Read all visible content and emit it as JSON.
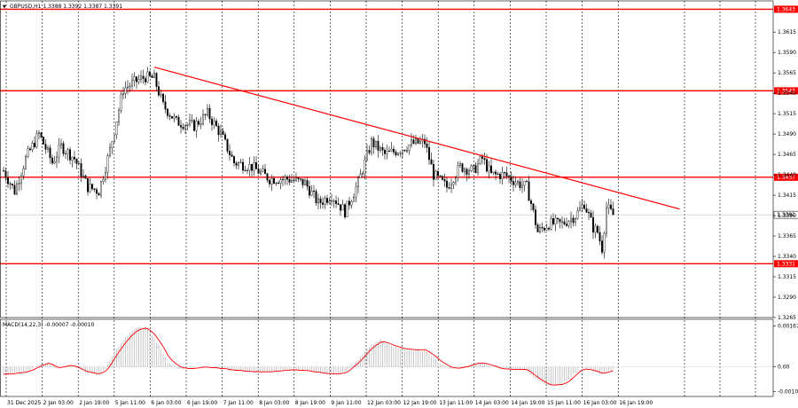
{
  "header": {
    "symbol_line": "GBPUSD,H1  1.3388 1.3392 1.3387 1.3391",
    "macd_line": "MACD(14,22,3) -0.00007 -0.00010"
  },
  "colors": {
    "background": "#ffffff",
    "candles": "#000000",
    "levels": "#ff0000",
    "trendline": "#ff0000",
    "macd_signal": "#ff0000",
    "macd_histogram": "#b0b0b0",
    "level_label_bg": "#ff0000",
    "level_label_text": "#ffffff",
    "price_label_bg": "#ffffff"
  },
  "chart_data": [
    {
      "type": "candlestick",
      "symbol": "GBPUSD",
      "timeframe": "H1",
      "last_ohlc": {
        "open": 1.3388,
        "high": 1.3392,
        "low": 1.3387,
        "close": 1.3391
      },
      "ylim": [
        1.3265,
        1.365
      ],
      "y_ticks": [
        "1.3615",
        "1.3590",
        "1.3565",
        "1.3540",
        "1.3515",
        "1.3490",
        "1.3465",
        "1.3440",
        "1.3415",
        "1.3390",
        "1.3365",
        "1.3340",
        "1.3315",
        "1.3290",
        "1.3265"
      ],
      "x_ticks": [
        "31 Dec 2025",
        "2 Jan 03:00",
        "2 Jan 19:00",
        "5 Jan 11:00",
        "6 Jan 03:00",
        "6 Jan 19:00",
        "7 Jan 11:00",
        "8 Jan 03:00",
        "8 Jan 19:00",
        "9 Jan 11:00",
        "12 Jan 03:00",
        "12 Jan 19:00",
        "13 Jan 11:00",
        "14 Jan 03:00",
        "14 Jan 19:00",
        "15 Jan 11:00",
        "16 Jan 03:00",
        "16 Jan 19:00"
      ],
      "x_tick_positions": [
        0,
        16,
        32,
        48,
        64,
        80,
        96,
        112,
        128,
        144,
        160,
        176,
        192,
        208,
        224,
        240,
        256,
        272
      ],
      "horizontal_levels": [
        {
          "value": 1.3643,
          "label": "1.3643"
        },
        {
          "value": 1.3543,
          "label": "1.3543"
        },
        {
          "value": 1.3437,
          "label": "1.3437"
        },
        {
          "value": 1.3331,
          "label": "1.3331"
        }
      ],
      "current_price": {
        "value": 1.3391,
        "label": "1.3391"
      },
      "trendline": {
        "start": {
          "bar": 68,
          "price": 1.3572
        },
        "end": {
          "bar": 305,
          "price": 1.3398
        }
      },
      "bar_count": 275,
      "close_anchors": [
        [
          0,
          1.3445
        ],
        [
          5,
          1.342
        ],
        [
          10,
          1.346
        ],
        [
          16,
          1.349
        ],
        [
          22,
          1.3455
        ],
        [
          26,
          1.3475
        ],
        [
          32,
          1.346
        ],
        [
          38,
          1.3425
        ],
        [
          43,
          1.342
        ],
        [
          48,
          1.347
        ],
        [
          54,
          1.3545
        ],
        [
          60,
          1.3555
        ],
        [
          64,
          1.356
        ],
        [
          68,
          1.3558
        ],
        [
          72,
          1.3525
        ],
        [
          78,
          1.3505
        ],
        [
          86,
          1.35
        ],
        [
          92,
          1.3515
        ],
        [
          98,
          1.349
        ],
        [
          104,
          1.3455
        ],
        [
          112,
          1.345
        ],
        [
          120,
          1.3435
        ],
        [
          128,
          1.3435
        ],
        [
          136,
          1.343
        ],
        [
          142,
          1.3405
        ],
        [
          148,
          1.3415
        ],
        [
          154,
          1.3395
        ],
        [
          160,
          1.343
        ],
        [
          166,
          1.348
        ],
        [
          172,
          1.3465
        ],
        [
          178,
          1.347
        ],
        [
          184,
          1.3478
        ],
        [
          190,
          1.348
        ],
        [
          194,
          1.344
        ],
        [
          200,
          1.3425
        ],
        [
          206,
          1.345
        ],
        [
          212,
          1.3445
        ],
        [
          216,
          1.346
        ],
        [
          220,
          1.344
        ],
        [
          226,
          1.344
        ],
        [
          232,
          1.343
        ],
        [
          236,
          1.3425
        ],
        [
          238,
          1.3405
        ],
        [
          241,
          1.337
        ],
        [
          246,
          1.338
        ],
        [
          252,
          1.338
        ],
        [
          258,
          1.339
        ],
        [
          262,
          1.3405
        ],
        [
          266,
          1.3375
        ],
        [
          268,
          1.337
        ],
        [
          270,
          1.335
        ],
        [
          272,
          1.34
        ],
        [
          275,
          1.3391
        ]
      ]
    },
    {
      "type": "bar",
      "indicator": "MACD",
      "params": [
        14,
        22,
        3
      ],
      "values_shown": {
        "macd": -7e-05,
        "signal": -0.0001
      },
      "ylim": [
        -0.0012,
        0.0019
      ],
      "y_ticks": [
        "0.00167",
        "0.00",
        "-0.00101"
      ],
      "histogram_anchors": [
        [
          0,
          -0.0003
        ],
        [
          10,
          -0.0002
        ],
        [
          16,
          0.0001
        ],
        [
          20,
          0.0002
        ],
        [
          24,
          -0.0001
        ],
        [
          30,
          0.0001
        ],
        [
          36,
          -0.0002
        ],
        [
          42,
          -0.0003
        ],
        [
          46,
          -0.0001
        ],
        [
          50,
          0.0006
        ],
        [
          56,
          0.0013
        ],
        [
          60,
          0.0016
        ],
        [
          64,
          0.0016
        ],
        [
          68,
          0.0012
        ],
        [
          74,
          0.0002
        ],
        [
          80,
          -0.0001
        ],
        [
          90,
          0.0
        ],
        [
          100,
          -0.0001
        ],
        [
          110,
          -0.0002
        ],
        [
          120,
          -0.0002
        ],
        [
          130,
          -0.0001
        ],
        [
          140,
          -0.0002
        ],
        [
          148,
          -0.0003
        ],
        [
          154,
          -0.0002
        ],
        [
          160,
          0.0003
        ],
        [
          166,
          0.0009
        ],
        [
          170,
          0.0011
        ],
        [
          176,
          0.0008
        ],
        [
          184,
          0.0007
        ],
        [
          190,
          0.0007
        ],
        [
          196,
          0.0002
        ],
        [
          202,
          -0.0001
        ],
        [
          208,
          0.0
        ],
        [
          214,
          0.0002
        ],
        [
          218,
          0.0001
        ],
        [
          224,
          -0.0001
        ],
        [
          232,
          -0.0001
        ],
        [
          236,
          -0.0001
        ],
        [
          240,
          -0.0005
        ],
        [
          246,
          -0.0008
        ],
        [
          252,
          -0.0007
        ],
        [
          256,
          -0.0004
        ],
        [
          260,
          0.0
        ],
        [
          264,
          -0.0001
        ],
        [
          270,
          -0.0003
        ],
        [
          275,
          -7e-05
        ]
      ]
    }
  ]
}
